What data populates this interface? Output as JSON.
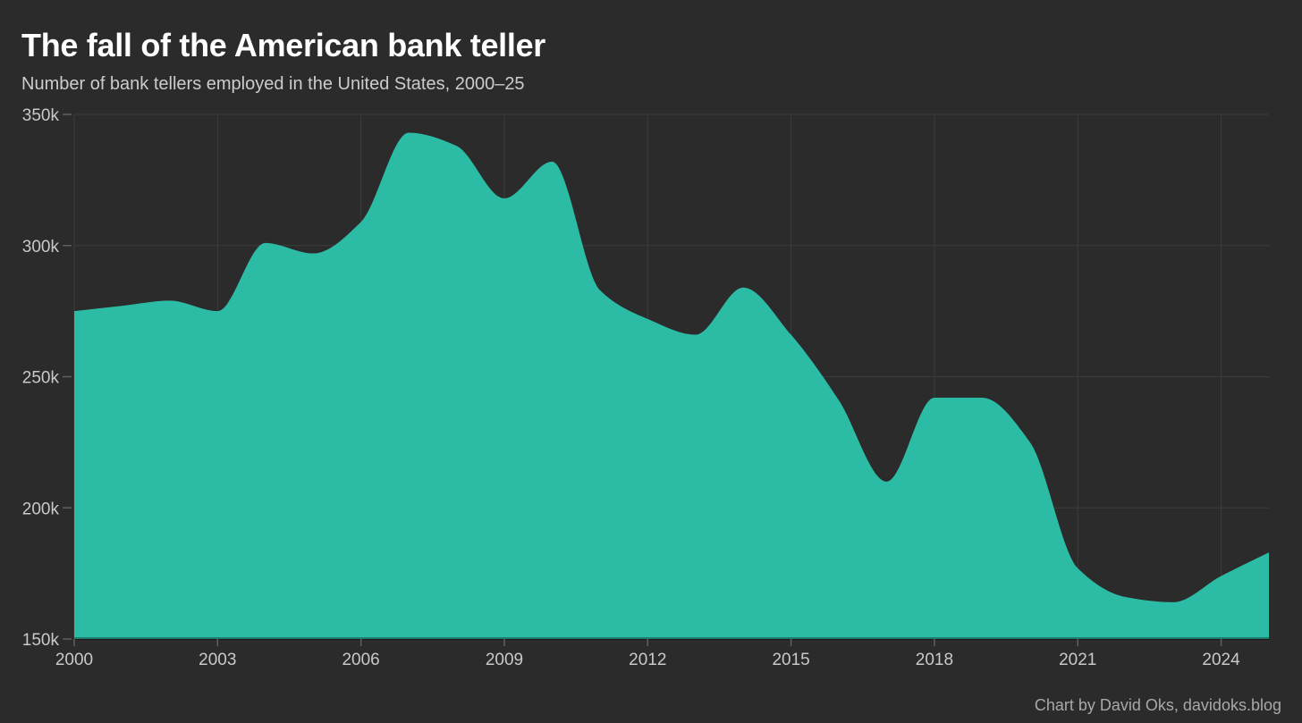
{
  "header": {
    "title": "The fall of the American bank teller",
    "subtitle": "Number of bank tellers employed in the United States, 2000–25"
  },
  "footer": {
    "credit": "Chart by David Oks, davidoks.blog"
  },
  "colors": {
    "background": "#2b2b2b",
    "area_fill": "#2cbca6",
    "gridline": "#3c3c3c",
    "tick_mark": "#5f5f5f",
    "axis_label": "#c9c9c9",
    "title_text": "#ffffff",
    "subtitle_text": "#cccccc",
    "credit_text": "#a8a8a8",
    "baseline_overlay": "rgba(0,0,0,0.33)"
  },
  "chart_data": {
    "type": "area",
    "title": "The fall of the American bank teller",
    "subtitle": "Number of bank tellers employed in the United States, 2000–25",
    "series_name": "Bank tellers employed in the United States",
    "x": [
      2000,
      2001,
      2002,
      2003,
      2004,
      2005,
      2006,
      2007,
      2008,
      2009,
      2010,
      2011,
      2012,
      2013,
      2014,
      2015,
      2016,
      2017,
      2018,
      2019,
      2020,
      2021,
      2022,
      2023,
      2024,
      2025
    ],
    "values": [
      275000,
      277000,
      279000,
      275000,
      301000,
      297000,
      309000,
      343000,
      338000,
      318000,
      332000,
      283000,
      272000,
      266000,
      284000,
      266000,
      241000,
      210000,
      242000,
      242000,
      225000,
      177000,
      166000,
      164000,
      174000,
      183000
    ],
    "xlabel": "",
    "ylabel": "",
    "xlim": [
      2000,
      2025
    ],
    "ylim": [
      150000,
      350000
    ],
    "x_ticks": [
      {
        "value": 2000,
        "label": "2000"
      },
      {
        "value": 2003,
        "label": "2003"
      },
      {
        "value": 2006,
        "label": "2006"
      },
      {
        "value": 2009,
        "label": "2009"
      },
      {
        "value": 2012,
        "label": "2012"
      },
      {
        "value": 2015,
        "label": "2015"
      },
      {
        "value": 2018,
        "label": "2018"
      },
      {
        "value": 2021,
        "label": "2021"
      },
      {
        "value": 2024,
        "label": "2024"
      }
    ],
    "y_ticks": [
      {
        "value": 150000,
        "label": "150k"
      },
      {
        "value": 200000,
        "label": "200k"
      },
      {
        "value": 250000,
        "label": "250k"
      },
      {
        "value": 300000,
        "label": "300k"
      },
      {
        "value": 350000,
        "label": "350k"
      }
    ],
    "grid": true,
    "legend": "none",
    "curve": "monotone"
  }
}
